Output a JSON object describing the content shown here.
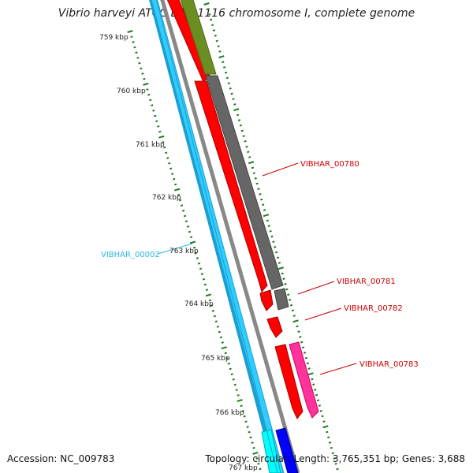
{
  "title": "Vibrio harveyi ATCC BAA-1116 chromosome I, complete genome",
  "accession_text": "Accession: NC_009783",
  "summary_text": "Topology: circular; Length: 3,765,351 bp; Genes: 3,688",
  "colors": {
    "tick_major": "#1f7a1f",
    "backbone": "#888888",
    "reverse_gene_label": "#29b6e0",
    "forward_gene_label": "#cc0000",
    "gene_red": "#ff0000",
    "gene_grey": "#666666",
    "gene_olive": "#6b8e23",
    "gene_cyan": "#33ccff",
    "gene_magenta": "#ff3399",
    "gene_blue": "#0000ff",
    "gene_aqua": "#00ffff"
  },
  "ticks": [
    "759 kbp",
    "760 kbp",
    "761 kbp",
    "762 kbp",
    "763 kbp",
    "764 kbp",
    "765 kbp",
    "766 kbp",
    "767 kbp"
  ],
  "gene_labels": [
    {
      "text": "VIBHAR_00780",
      "color": "forward_gene_label"
    },
    {
      "text": "VIBHAR_00781",
      "color": "forward_gene_label"
    },
    {
      "text": "VIBHAR_00782",
      "color": "forward_gene_label"
    },
    {
      "text": "VIBHAR_00783",
      "color": "forward_gene_label"
    },
    {
      "text": "VIBHAR_00002",
      "color": "reverse_gene_label"
    }
  ]
}
